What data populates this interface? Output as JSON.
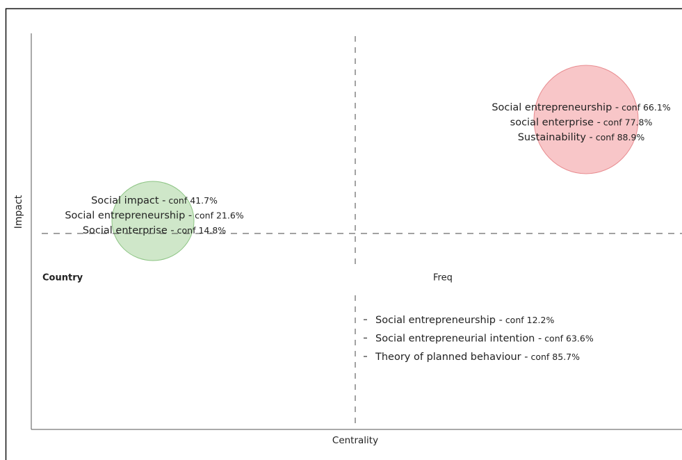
{
  "axes": {
    "x_label": "Centrality",
    "y_label": "Impact"
  },
  "quadrant_labels": [
    "Country",
    "Freq"
  ],
  "clusters": [
    {
      "items": [
        {
          "term": "Social impact -",
          "conf": "conf 41.7%"
        },
        {
          "term": "Social entrepreneurship -",
          "conf": "conf 21.6%"
        },
        {
          "term": "Social enterprise -",
          "conf": "conf 14.8%"
        }
      ]
    },
    {
      "items": [
        {
          "term": "Social entrepreneurship -",
          "conf": "conf 66.1%"
        },
        {
          "term": "social enterprise -",
          "conf": "conf 77.8%"
        },
        {
          "term": "Sustainability -",
          "conf": "conf 88.9%"
        }
      ]
    },
    {
      "items": [
        {
          "term": "Social entrepreneurship -",
          "conf": "conf 12.2%"
        },
        {
          "term": "Social entrepreneurial intention -",
          "conf": "conf 63.6%"
        },
        {
          "term": "Theory of planned behaviour -",
          "conf": "conf 85.7%"
        }
      ]
    }
  ]
}
